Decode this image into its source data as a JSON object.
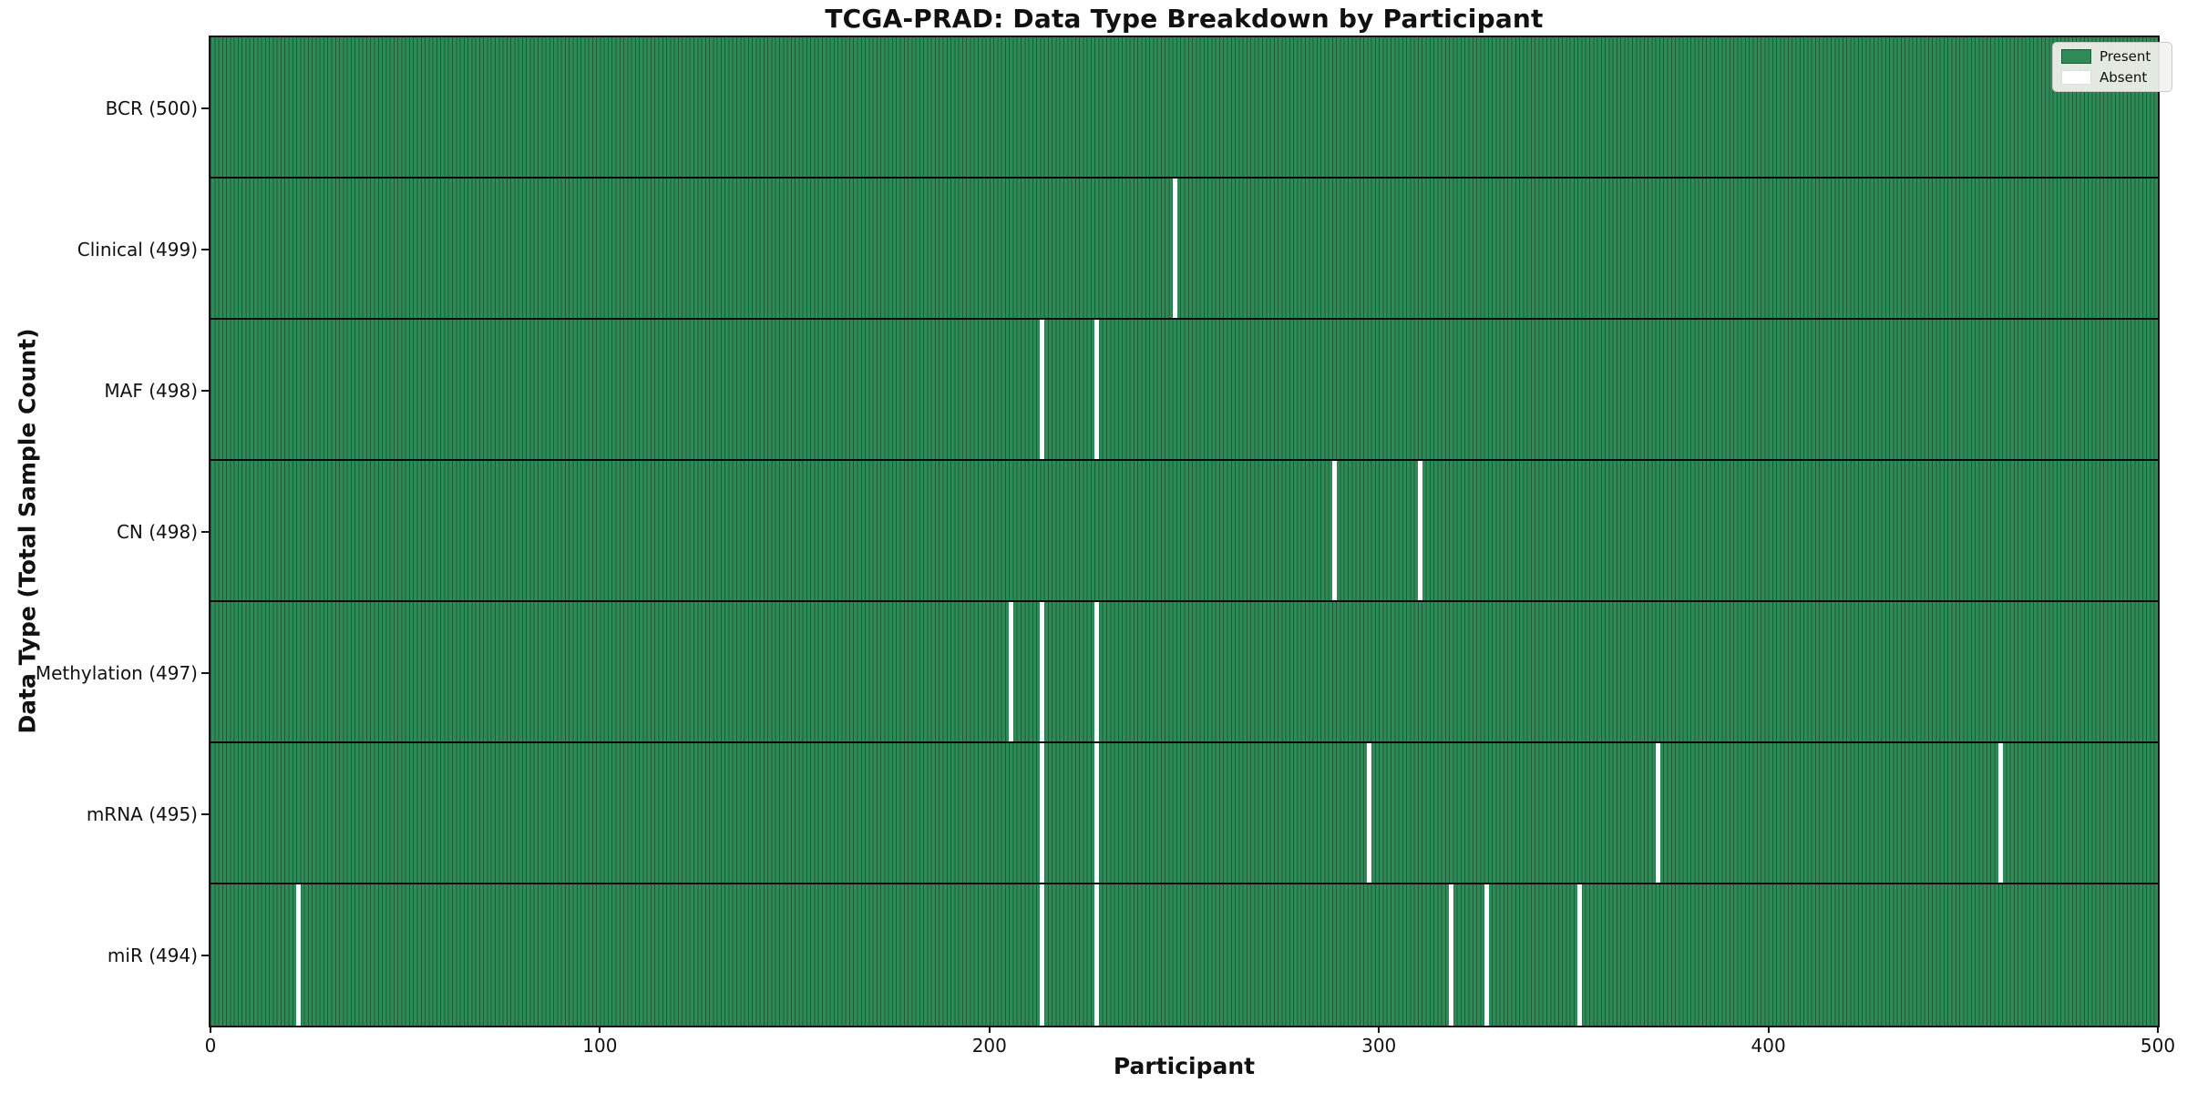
{
  "chart_data": {
    "type": "heatmap",
    "title": "TCGA-PRAD: Data Type Breakdown by Participant",
    "xlabel": "Participant",
    "ylabel": "Data Type (Total Sample Count)",
    "x_ticks": [
      0,
      100,
      200,
      300,
      400,
      500
    ],
    "x_range": [
      0,
      500
    ],
    "n_participants": 500,
    "grid": false,
    "legend_position": "upper right",
    "legend": {
      "present": "Present",
      "absent": "Absent"
    },
    "colors": {
      "present_fill": "#2e8b57",
      "cell_edge": "#1d5c38",
      "absent": "#ffffff",
      "row_separator": "#0a0a0a",
      "legend_bg": "#f2f2ee",
      "legend_border": "#c9c9c9",
      "spine": "#161616"
    },
    "rows": [
      {
        "data_type": "BCR",
        "label": "BCR (500)",
        "total": 500,
        "absent_participants": []
      },
      {
        "data_type": "Clinical",
        "label": "Clinical (499)",
        "total": 499,
        "absent_participants": [
          247
        ]
      },
      {
        "data_type": "MAF",
        "label": "MAF (498)",
        "total": 498,
        "absent_participants": [
          213,
          227
        ]
      },
      {
        "data_type": "CN",
        "label": "CN (498)",
        "total": 498,
        "absent_participants": [
          288,
          310
        ]
      },
      {
        "data_type": "Methylation",
        "label": "Methylation (497)",
        "total": 497,
        "absent_participants": [
          205,
          213,
          227
        ]
      },
      {
        "data_type": "mRNA",
        "label": "mRNA (495)",
        "total": 495,
        "absent_participants": [
          213,
          227,
          297,
          371,
          459
        ]
      },
      {
        "data_type": "miR",
        "label": "miR (494)",
        "total": 494,
        "absent_participants": [
          22,
          213,
          227,
          318,
          327,
          351
        ]
      }
    ]
  }
}
